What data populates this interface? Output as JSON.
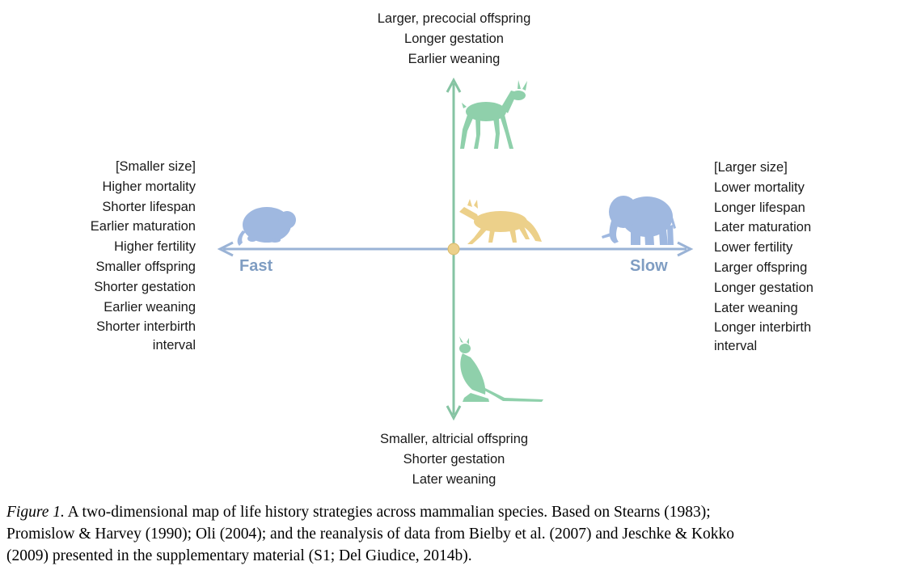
{
  "diagram": {
    "top_traits": [
      "Larger, precocial offspring",
      "Longer gestation",
      "Earlier weaning"
    ],
    "bottom_traits": [
      "Smaller, altricial offspring",
      "Shorter gestation",
      "Later weaning"
    ],
    "left_traits": [
      "[Smaller size]",
      "Higher mortality",
      "Shorter lifespan",
      "Earlier maturation",
      "Higher fertility",
      "Smaller offspring",
      "Shorter gestation",
      "Earlier weaning",
      "Shorter interbirth",
      "interval"
    ],
    "right_traits": [
      "[Larger size]",
      "Lower mortality",
      "Longer lifespan",
      "Later maturation",
      "Lower fertility",
      "Larger offspring",
      "Longer gestation",
      "Later weaning",
      "Longer interbirth",
      "interval"
    ],
    "axis_labels": {
      "fast": "Fast",
      "slow": "Slow"
    },
    "animals": [
      "vole-icon",
      "deer-icon",
      "fox-icon",
      "elephant-icon",
      "kangaroo-icon"
    ],
    "colors": {
      "horizontal_axis": "#9ab3d6",
      "vertical_axis": "#86c4a3",
      "vole": "#9fb8e0",
      "elephant": "#9fb8e0",
      "deer": "#8fd0ab",
      "kangaroo": "#8fd0ab",
      "fox": "#ecd08a",
      "origin": "#ecd08a",
      "axis_text": "#7f9dc2"
    }
  },
  "caption": {
    "label": "Figure 1.",
    "line1": " A two-dimensional map of life history strategies across mammalian species. Based on Stearns (1983);",
    "line2": "Promislow & Harvey (1990); Oli (2004); and the reanalysis of data from Bielby et al. (2007) and Jeschke & Kokko",
    "line3": "(2009) presented in the supplementary material (S1; Del Giudice, 2014b)."
  }
}
